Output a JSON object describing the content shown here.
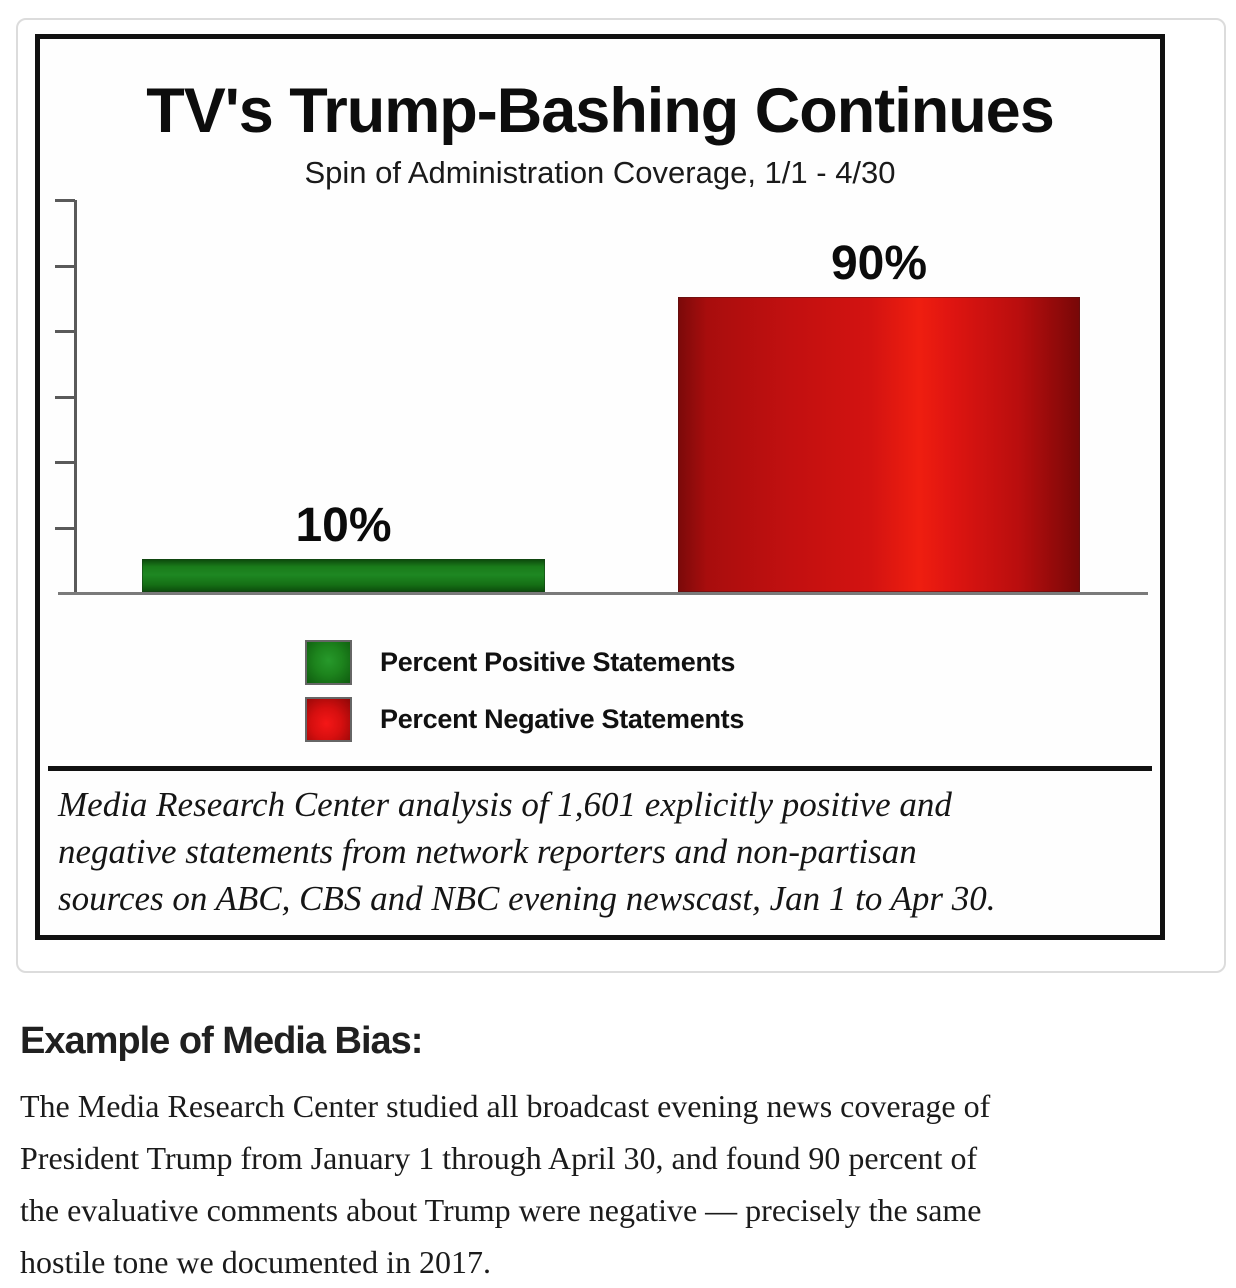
{
  "chart_data": {
    "type": "bar",
    "title": "TV's Trump-Bashing Continues",
    "subtitle": "Spin of Administration Coverage, 1/1 - 4/30",
    "categories": [
      "Positive Statements",
      "Negative Statements"
    ],
    "series": [
      {
        "name": "Percent Positive Statements",
        "value": 10,
        "label": "10%",
        "color": "#1a7a1a"
      },
      {
        "name": "Percent Negative Statements",
        "value": 90,
        "label": "90%",
        "color": "#cc1010"
      }
    ],
    "xlabel": "",
    "ylabel": "",
    "ylim": [
      0,
      120
    ],
    "yticks": [
      20,
      40,
      60,
      80,
      100,
      120
    ],
    "y_tick_labels_visible": false,
    "grid": false,
    "legend_position": "bottom-left-inside",
    "caption_lines": [
      "Media Research Center analysis of 1,601 explicitly positive and",
      "negative statements from network reporters and non-partisan",
      "sources on ABC, CBS and NBC evening newscast, Jan 1 to Apr 30."
    ],
    "axis_color": "#5a5a5a",
    "baseline_color": "#7a7a7a",
    "frame_border_color": "#111111"
  },
  "article": {
    "heading": "Example of Media Bias:",
    "paragraph_lines": [
      "The Media Research Center studied all broadcast evening news coverage of",
      "President Trump from January 1 through April 30, and found 90 percent of",
      "the evaluative comments about Trump were negative — precisely the same",
      "hostile tone we documented in 2017."
    ]
  }
}
